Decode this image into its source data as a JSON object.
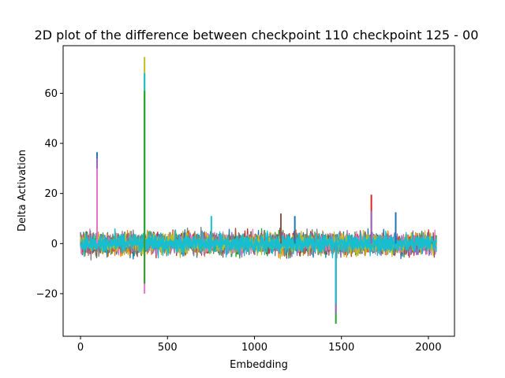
{
  "chart_data": {
    "type": "line",
    "title": "2D plot of the difference between checkpoint 110 checkpoint 125 - 00",
    "xlabel": "Embedding",
    "ylabel": "Delta Activation",
    "xlim": [
      -100,
      2150
    ],
    "ylim": [
      -37,
      79
    ],
    "xticks": [
      0,
      500,
      1000,
      1500,
      2000
    ],
    "yticks": [
      -20,
      0,
      20,
      40,
      60
    ],
    "x_range": [
      0,
      2047
    ],
    "noise_band": [
      -9,
      9
    ],
    "series_colors": [
      "#1f77b4",
      "#ff7f0e",
      "#2ca02c",
      "#d62728",
      "#9467bd",
      "#8c564b",
      "#e377c2",
      "#7f7f7f",
      "#bcbd22",
      "#17becf"
    ],
    "spikes": [
      {
        "x": 95,
        "y": 36.5,
        "color": "#1f77b4"
      },
      {
        "x": 95,
        "y": 34,
        "color": "#9467bd"
      },
      {
        "x": 95,
        "y": 30,
        "color": "#e377c2"
      },
      {
        "x": 368,
        "y": 74.5,
        "color": "#bcbd22"
      },
      {
        "x": 368,
        "y": 68,
        "color": "#17becf"
      },
      {
        "x": 368,
        "y": 61,
        "color": "#2ca02c"
      },
      {
        "x": 368,
        "y": -20,
        "color": "#e377c2"
      },
      {
        "x": 368,
        "y": -16,
        "color": "#2ca02c"
      },
      {
        "x": 1468,
        "y": -32,
        "color": "#2ca02c"
      },
      {
        "x": 1468,
        "y": -28,
        "color": "#9467bd"
      },
      {
        "x": 1468,
        "y": -24,
        "color": "#17becf"
      },
      {
        "x": 1672,
        "y": 19.5,
        "color": "#d62728"
      },
      {
        "x": 1672,
        "y": 13,
        "color": "#9467bd"
      },
      {
        "x": 1812,
        "y": 12.5,
        "color": "#1f77b4"
      },
      {
        "x": 1152,
        "y": 12,
        "color": "#8c564b"
      },
      {
        "x": 1232,
        "y": 11,
        "color": "#1f77b4"
      },
      {
        "x": 752,
        "y": 11,
        "color": "#17becf"
      }
    ]
  }
}
